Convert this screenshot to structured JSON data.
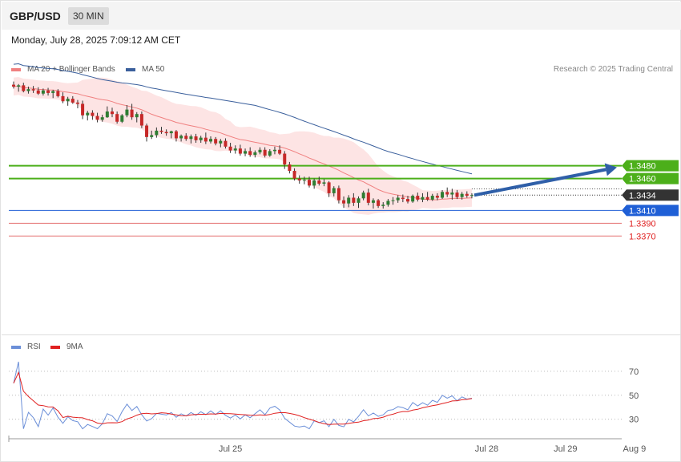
{
  "header": {
    "symbol": "GBP/USD",
    "timeframe": "30 MIN"
  },
  "datetime": "Monday, July 28, 2025 7:09:12 AM CET",
  "legend": {
    "ma20": {
      "label": "MA 20 + Bollinger Bands",
      "color": "#f08080"
    },
    "ma50": {
      "label": "MA 50",
      "color": "#3a5f9c"
    },
    "credit": "Research © 2025 Trading Central"
  },
  "rsi_legend": {
    "rsi": {
      "label": "RSI",
      "color": "#6b8fd8"
    },
    "ma9": {
      "label": "9MA",
      "color": "#e02020"
    }
  },
  "colors": {
    "up": "#2e7d32",
    "down": "#c62828",
    "support": "#1f5fd6",
    "resistance": "#4caf1a",
    "current": "#333333",
    "target": "#2f5fa8",
    "weak": "#e57373"
  },
  "chart_data": [
    {
      "type": "candlestick",
      "ylim": [
        1.3305,
        1.3614
      ],
      "levels": [
        {
          "value": 1.348,
          "label": "1.3480",
          "kind": "resistance"
        },
        {
          "value": 1.346,
          "label": "1.3460",
          "kind": "resistance"
        },
        {
          "value": 1.3434,
          "label": "1.3434",
          "kind": "current"
        },
        {
          "value": 1.341,
          "label": "1.3410",
          "kind": "support"
        },
        {
          "value": 1.339,
          "label": "1.3390",
          "kind": "weak"
        },
        {
          "value": 1.337,
          "label": "1.3370",
          "kind": "weak"
        }
      ],
      "x_ticks": [
        {
          "index": 44,
          "label": "Jul 25"
        },
        {
          "index": 96,
          "label": "Jul 28"
        },
        {
          "index": 112,
          "label": "Jul 29"
        },
        {
          "index": 126,
          "label": "Aug 9"
        }
      ],
      "candles": [
        [
          1.3607,
          1.3612,
          1.3601,
          1.3604
        ],
        [
          1.3604,
          1.3608,
          1.3596,
          1.3606
        ],
        [
          1.3606,
          1.361,
          1.3595,
          1.3597
        ],
        [
          1.3597,
          1.3604,
          1.3593,
          1.36
        ],
        [
          1.36,
          1.3605,
          1.3594,
          1.3598
        ],
        [
          1.3598,
          1.3603,
          1.3591,
          1.3593
        ],
        [
          1.3593,
          1.3601,
          1.359,
          1.3598
        ],
        [
          1.3598,
          1.3602,
          1.359,
          1.3594
        ],
        [
          1.3594,
          1.3599,
          1.3586,
          1.3597
        ],
        [
          1.3597,
          1.36,
          1.3587,
          1.3589
        ],
        [
          1.3589,
          1.3595,
          1.3578,
          1.3581
        ],
        [
          1.3581,
          1.3588,
          1.3574,
          1.3585
        ],
        [
          1.3585,
          1.3589,
          1.3577,
          1.3579
        ],
        [
          1.3579,
          1.3583,
          1.357,
          1.3577
        ],
        [
          1.3577,
          1.3582,
          1.3553,
          1.3559
        ],
        [
          1.3559,
          1.3566,
          1.3551,
          1.3563
        ],
        [
          1.3563,
          1.3567,
          1.3552,
          1.3558
        ],
        [
          1.3558,
          1.3563,
          1.3548,
          1.3552
        ],
        [
          1.3552,
          1.356,
          1.3549,
          1.3556
        ],
        [
          1.3556,
          1.3573,
          1.3555,
          1.3565
        ],
        [
          1.3565,
          1.3571,
          1.3556,
          1.3561
        ],
        [
          1.3561,
          1.3565,
          1.3546,
          1.3549
        ],
        [
          1.3549,
          1.3561,
          1.3547,
          1.3559
        ],
        [
          1.3559,
          1.3575,
          1.3556,
          1.3568
        ],
        [
          1.3568,
          1.3577,
          1.3552,
          1.3556
        ],
        [
          1.3556,
          1.3564,
          1.3548,
          1.3561
        ],
        [
          1.3561,
          1.3565,
          1.3539,
          1.3543
        ],
        [
          1.3543,
          1.3546,
          1.3518,
          1.3525
        ],
        [
          1.3525,
          1.3535,
          1.3522,
          1.3528
        ],
        [
          1.3528,
          1.354,
          1.3524,
          1.3535
        ],
        [
          1.3535,
          1.3541,
          1.353,
          1.3533
        ],
        [
          1.3533,
          1.3537,
          1.3527,
          1.3531
        ],
        [
          1.3531,
          1.3535,
          1.3523,
          1.3534
        ],
        [
          1.3534,
          1.3536,
          1.3518,
          1.3523
        ],
        [
          1.3523,
          1.3529,
          1.3518,
          1.3527
        ],
        [
          1.3527,
          1.3531,
          1.3519,
          1.3522
        ],
        [
          1.3522,
          1.3529,
          1.3515,
          1.3526
        ],
        [
          1.3526,
          1.353,
          1.3516,
          1.352
        ],
        [
          1.352,
          1.3527,
          1.3516,
          1.3524
        ],
        [
          1.3524,
          1.3532,
          1.3514,
          1.3518
        ],
        [
          1.3518,
          1.3526,
          1.3515,
          1.3522
        ],
        [
          1.3522,
          1.3525,
          1.3512,
          1.3515
        ],
        [
          1.3515,
          1.3522,
          1.3509,
          1.3519
        ],
        [
          1.3519,
          1.3523,
          1.3507,
          1.351
        ],
        [
          1.351,
          1.3516,
          1.35,
          1.3504
        ],
        [
          1.3504,
          1.3512,
          1.3499,
          1.3507
        ],
        [
          1.3507,
          1.3513,
          1.3496,
          1.3499
        ],
        [
          1.3499,
          1.3507,
          1.3495,
          1.3503
        ],
        [
          1.3503,
          1.3509,
          1.3494,
          1.3497
        ],
        [
          1.3497,
          1.3504,
          1.3493,
          1.3501
        ],
        [
          1.3501,
          1.3509,
          1.3498,
          1.3505
        ],
        [
          1.3505,
          1.3509,
          1.3493,
          1.3496
        ],
        [
          1.3496,
          1.3506,
          1.3494,
          1.3503
        ],
        [
          1.3503,
          1.351,
          1.3498,
          1.3505
        ],
        [
          1.3505,
          1.3512,
          1.3497,
          1.3499
        ],
        [
          1.3499,
          1.3503,
          1.3475,
          1.3482
        ],
        [
          1.3482,
          1.3486,
          1.3468,
          1.3472
        ],
        [
          1.3472,
          1.3476,
          1.3457,
          1.346
        ],
        [
          1.346,
          1.3465,
          1.3452,
          1.3457
        ],
        [
          1.3457,
          1.3463,
          1.3451,
          1.3458
        ],
        [
          1.3458,
          1.3463,
          1.3446,
          1.3449
        ],
        [
          1.3449,
          1.346,
          1.3444,
          1.3457
        ],
        [
          1.3457,
          1.3463,
          1.3449,
          1.3452
        ],
        [
          1.3452,
          1.3459,
          1.3448,
          1.3454
        ],
        [
          1.3454,
          1.3456,
          1.3431,
          1.3437
        ],
        [
          1.3437,
          1.3448,
          1.3432,
          1.3445
        ],
        [
          1.3445,
          1.3449,
          1.3421,
          1.3426
        ],
        [
          1.3426,
          1.3432,
          1.3414,
          1.3421
        ],
        [
          1.3421,
          1.3434,
          1.3415,
          1.343
        ],
        [
          1.343,
          1.3437,
          1.3417,
          1.3422
        ],
        [
          1.3422,
          1.3432,
          1.3414,
          1.3429
        ],
        [
          1.3429,
          1.3441,
          1.3426,
          1.3438
        ],
        [
          1.3438,
          1.3444,
          1.3418,
          1.3422
        ],
        [
          1.3422,
          1.3429,
          1.3413,
          1.3426
        ],
        [
          1.3426,
          1.3428,
          1.3414,
          1.3417
        ],
        [
          1.3417,
          1.3423,
          1.3413,
          1.3419
        ],
        [
          1.3419,
          1.3428,
          1.3416,
          1.3425
        ],
        [
          1.3425,
          1.3431,
          1.3419,
          1.3426
        ],
        [
          1.3426,
          1.3434,
          1.3422,
          1.343
        ],
        [
          1.343,
          1.3435,
          1.3423,
          1.3428
        ],
        [
          1.3428,
          1.3433,
          1.3421,
          1.3424
        ],
        [
          1.3424,
          1.3435,
          1.3422,
          1.3433
        ],
        [
          1.3433,
          1.3438,
          1.3424,
          1.3427
        ],
        [
          1.3427,
          1.3437,
          1.3423,
          1.3431
        ],
        [
          1.3431,
          1.3439,
          1.3425,
          1.3427
        ],
        [
          1.3427,
          1.3436,
          1.3425,
          1.3433
        ],
        [
          1.3433,
          1.3437,
          1.3426,
          1.343
        ],
        [
          1.343,
          1.3442,
          1.3428,
          1.3439
        ],
        [
          1.3439,
          1.3446,
          1.3431,
          1.3435
        ],
        [
          1.3435,
          1.3444,
          1.3427,
          1.3438
        ],
        [
          1.3438,
          1.3442,
          1.3428,
          1.3431
        ],
        [
          1.3431,
          1.3439,
          1.3427,
          1.3436
        ],
        [
          1.3436,
          1.344,
          1.343,
          1.3433
        ],
        [
          1.3433,
          1.3437,
          1.3429,
          1.3434
        ]
      ]
    },
    {
      "type": "line",
      "title": "RSI",
      "ylim": [
        15,
        82
      ],
      "reference_lines": [
        70,
        50,
        30
      ],
      "series_names": [
        "RSI",
        "9MA"
      ]
    }
  ],
  "axes_labels": {
    "rsi_70": "70",
    "rsi_50": "50",
    "rsi_30": "30"
  }
}
